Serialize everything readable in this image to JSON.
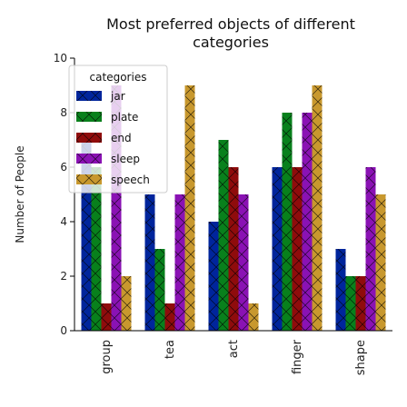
{
  "chart_data": {
    "type": "bar",
    "title": [
      "Most preferred objects of different",
      "categories"
    ],
    "xlabel": "",
    "ylabel": "Number of People",
    "ylim": [
      0,
      10
    ],
    "yticks": [
      0,
      2,
      4,
      6,
      8,
      10
    ],
    "grid": false,
    "categories": [
      "group",
      "tea",
      "act",
      "finger",
      "shape"
    ],
    "legend": {
      "title": "categories",
      "placement": "top-left"
    },
    "series": [
      {
        "name": "jar",
        "color": "#00259c",
        "values": [
          7,
          5,
          4,
          6,
          3
        ]
      },
      {
        "name": "plate",
        "color": "#08801c",
        "values": [
          6,
          3,
          7,
          8,
          2
        ]
      },
      {
        "name": "end",
        "color": "#8f0c0c",
        "values": [
          1,
          1,
          6,
          6,
          2
        ]
      },
      {
        "name": "sleep",
        "color": "#8a12b4",
        "values": [
          9,
          5,
          5,
          8,
          6
        ]
      },
      {
        "name": "speech",
        "color": "#c8982e",
        "values": [
          2,
          9,
          1,
          9,
          5
        ]
      }
    ]
  }
}
